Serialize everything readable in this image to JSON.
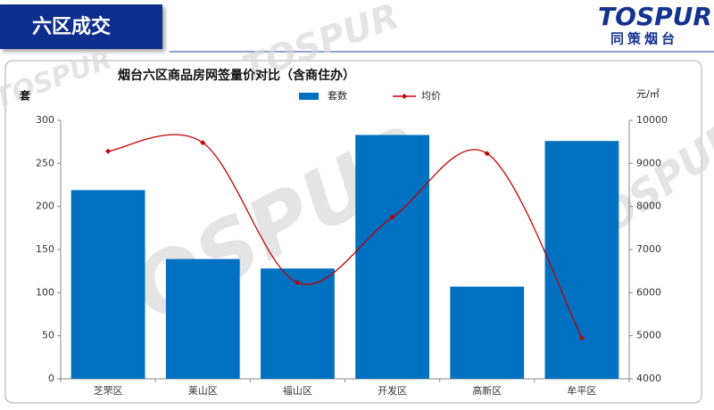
{
  "header": {
    "title": "六区成交",
    "logo": "TOSPUR",
    "logo_sub": "同策烟台",
    "watermark": "TOSPUR"
  },
  "chart_data": {
    "type": "bar",
    "title": "烟台六区商品房网签量价对比（含商住办）",
    "ylabel": "套",
    "y2label": "元/㎡",
    "categories": [
      "芝罘区",
      "莱山区",
      "福山区",
      "开发区",
      "高新区",
      "牟平区"
    ],
    "series": [
      {
        "name": "套数",
        "color": "#0070c0",
        "type": "bar",
        "values": [
          219,
          139,
          128,
          283,
          107,
          276
        ]
      },
      {
        "name": "均价",
        "color": "#c00000",
        "type": "line",
        "axis": "y2",
        "values": [
          9280,
          9480,
          6230,
          7750,
          9230,
          4950
        ]
      }
    ],
    "ylim": [
      0,
      300
    ],
    "yticks": [
      0,
      50,
      100,
      150,
      200,
      250,
      300
    ],
    "y2lim": [
      4000,
      10000
    ],
    "y2ticks": [
      4000,
      5000,
      6000,
      7000,
      8000,
      9000,
      10000
    ],
    "grid": false,
    "legend": "top"
  }
}
